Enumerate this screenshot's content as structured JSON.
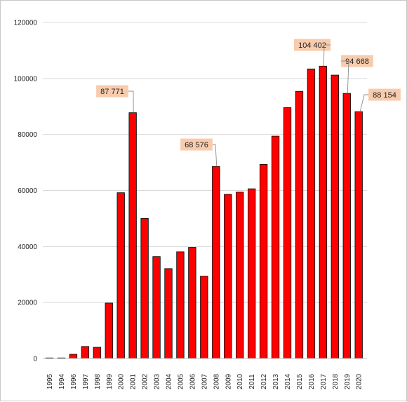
{
  "chart_data": {
    "type": "bar",
    "title": "",
    "xlabel": "",
    "ylabel": "",
    "ylim": [
      0,
      120000
    ],
    "yticks": [
      0,
      20000,
      40000,
      60000,
      80000,
      100000,
      120000
    ],
    "ytick_labels": [
      "0",
      "20000",
      "40000",
      "60000",
      "80000",
      "100000",
      "120000"
    ],
    "grid": true,
    "legend": "none",
    "bar_color": "#ff0000",
    "bar_edge_color": "#000000",
    "callout_fill": "#f8cbad",
    "categories": [
      "1995",
      "1994",
      "1996",
      "1997",
      "1998",
      "1999",
      "2000",
      "2001",
      "2002",
      "2003",
      "2004",
      "2005",
      "2006",
      "2007",
      "2008",
      "2009",
      "2010",
      "2011",
      "2012",
      "2013",
      "2014",
      "2015",
      "2016",
      "2017",
      "2018",
      "2019",
      "2020"
    ],
    "values": [
      0,
      150,
      1500,
      4300,
      4000,
      19800,
      59200,
      87771,
      50000,
      36400,
      32100,
      38100,
      39700,
      29400,
      68576,
      58600,
      59400,
      60600,
      69300,
      79400,
      89600,
      95400,
      103400,
      104402,
      101200,
      94668,
      88154
    ],
    "callouts": [
      {
        "category": "2001",
        "label": "87 771"
      },
      {
        "category": "2008",
        "label": "68 576"
      },
      {
        "category": "2017",
        "label": "104 402"
      },
      {
        "category": "2019",
        "label": "94 668"
      },
      {
        "category": "2020",
        "label": "88 154"
      }
    ]
  }
}
